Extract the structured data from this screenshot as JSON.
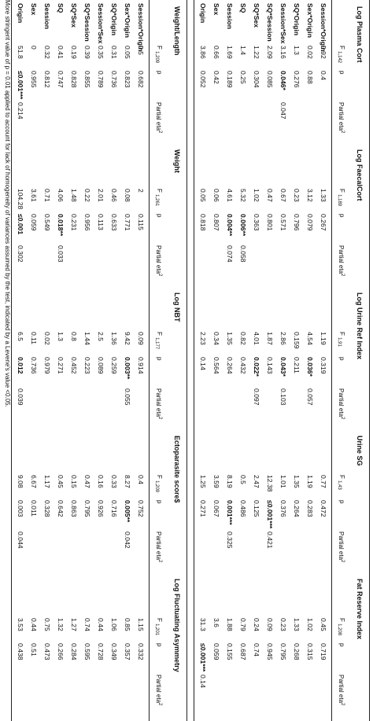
{
  "blocks": [
    {
      "groups": [
        {
          "title": "Log Plasma Cort",
          "df": "1,142"
        },
        {
          "title": "Log FaecalCort",
          "df": "1,189"
        },
        {
          "title": "Log Urine Ref Index",
          "df": "1,91"
        },
        {
          "title": "Urine SG",
          "df": "1,43"
        },
        {
          "title": "Fat Reserve Index",
          "df": "1,208"
        }
      ],
      "rows": [
        {
          "label": "Session*Origin",
          "groups": [
            {
              "f": "0.92",
              "p": "0.4",
              "eta": ""
            },
            {
              "f": "1.33",
              "p": "0.267",
              "eta": ""
            },
            {
              "f": "1.19",
              "p": "0.319",
              "eta": ""
            },
            {
              "f": "0.77",
              "p": "0.472",
              "eta": ""
            },
            {
              "f": "0.45",
              "p": "0.719",
              "eta": ""
            }
          ]
        },
        {
          "label": "Sex*Origin",
          "groups": [
            {
              "f": "0.02",
              "p": "0.88",
              "eta": ""
            },
            {
              "f": "3.12",
              "p": "0.079",
              "eta": ""
            },
            {
              "f": "4.54",
              "p": "0.036*",
              "pbold": true,
              "eta": "0.057"
            },
            {
              "f": "1.19",
              "p": "0.283",
              "eta": ""
            },
            {
              "f": "1.02",
              "p": "0.315",
              "eta": ""
            }
          ]
        },
        {
          "label": "SQ*Origin",
          "groups": [
            {
              "f": "1.3",
              "p": "0.276",
              "eta": ""
            },
            {
              "f": "0.23",
              "p": "0.796",
              "eta": ""
            },
            {
              "f": "0.159",
              "p": "0.211",
              "eta": ""
            },
            {
              "f": "1.35",
              "p": "0.264",
              "eta": ""
            },
            {
              "f": "1.33",
              "p": "0.268",
              "eta": ""
            }
          ]
        },
        {
          "label": "Session*Sex",
          "groups": [
            {
              "f": "3.16",
              "p": "0.046*",
              "pbold": true,
              "eta": "0.047"
            },
            {
              "f": "0.67",
              "p": "0.571",
              "eta": ""
            },
            {
              "f": "2.86",
              "p": "0.043*",
              "pbold": true,
              "eta": "0.103"
            },
            {
              "f": "1.01",
              "p": "0.376",
              "eta": ""
            },
            {
              "f": "0.23",
              "p": "0.795",
              "eta": ""
            }
          ]
        },
        {
          "label": "SQ*Session",
          "groups": [
            {
              "f": "2.09",
              "p": "0.085",
              "eta": ""
            },
            {
              "f": "0.47",
              "p": "0.801",
              "eta": ""
            },
            {
              "f": "1.87",
              "p": "0.143",
              "eta": ""
            },
            {
              "f": "12.38",
              "p": "≤0.001***",
              "pbold": true,
              "eta": "0.421"
            },
            {
              "f": "0.09",
              "p": "0.945",
              "eta": ""
            }
          ]
        },
        {
          "label": "SQ*Sex",
          "groups": [
            {
              "f": "1.22",
              "p": "0.304",
              "eta": ""
            },
            {
              "f": "1.02",
              "p": "0.363",
              "eta": ""
            },
            {
              "f": "4.01",
              "p": "0.022*",
              "pbold": true,
              "eta": "0.097"
            },
            {
              "f": "2.47",
              "p": "0.125",
              "eta": ""
            },
            {
              "f": "0.24",
              "p": "0.74",
              "eta": ""
            }
          ]
        },
        {
          "label": "SQ",
          "groups": [
            {
              "f": "1.4",
              "p": "0.25",
              "eta": ""
            },
            {
              "f": "5.32",
              "p": "0.006**",
              "pbold": true,
              "eta": "0.058"
            },
            {
              "f": "0.82",
              "p": "0.432",
              "eta": ""
            },
            {
              "f": "0.5",
              "p": "0.486",
              "eta": ""
            },
            {
              "f": "0.79",
              "p": "0.687",
              "eta": ""
            }
          ]
        },
        {
          "label": "Session",
          "groups": [
            {
              "f": "1.69",
              "p": "0.189",
              "eta": ""
            },
            {
              "f": "4.61",
              "p": "0.004**",
              "pbold": true,
              "eta": "0.074"
            },
            {
              "f": "1.35",
              "p": "0.264",
              "eta": ""
            },
            {
              "f": "8.19",
              "p": "0.001***",
              "pbold": true,
              "eta": "0.325"
            },
            {
              "f": "1.88",
              "p": "0.155",
              "eta": ""
            }
          ]
        },
        {
          "label": "Sex",
          "groups": [
            {
              "f": "0.66",
              "p": "0.42",
              "eta": ""
            },
            {
              "f": "0.06",
              "p": "0.807",
              "eta": ""
            },
            {
              "f": "0.34",
              "p": "0.564",
              "eta": ""
            },
            {
              "f": "3.59",
              "p": "0.067",
              "eta": ""
            },
            {
              "f": "3.6",
              "p": "0.059",
              "eta": ""
            }
          ]
        },
        {
          "label": "Origin",
          "groups": [
            {
              "f": "3.86",
              "p": "0.052",
              "eta": ""
            },
            {
              "f": "0.05",
              "p": "0.818",
              "eta": ""
            },
            {
              "f": "2.23",
              "p": "0.14",
              "eta": ""
            },
            {
              "f": "1.25",
              "p": "0.271",
              "eta": ""
            },
            {
              "f": "31.3",
              "p": "≤0.001***",
              "pbold": true,
              "eta": "0.14"
            }
          ]
        }
      ]
    },
    {
      "groups": [
        {
          "title": "Weight/Length",
          "df": "1,209"
        },
        {
          "title": "Weight",
          "df": "1,261"
        },
        {
          "title": "Log NBT",
          "df": "1,177"
        },
        {
          "title": "Ectoparasite score$",
          "df": "1,209"
        },
        {
          "title": "Log Fluctuating Asymmetry",
          "df": "1,201"
        }
      ],
      "rows": [
        {
          "label": "Session*Origin",
          "groups": [
            {
              "f": "0.5",
              "p": "0.682",
              "eta": ""
            },
            {
              "f": "2",
              "p": "0.115",
              "eta": ""
            },
            {
              "f": "0.09",
              "p": "0.914",
              "eta": ""
            },
            {
              "f": "0.4",
              "p": "0.752",
              "eta": ""
            },
            {
              "f": "1.15",
              "p": "0.332",
              "eta": ""
            }
          ]
        },
        {
          "label": "Sex*Origin",
          "groups": [
            {
              "f": "0.05",
              "p": "0.823",
              "eta": ""
            },
            {
              "f": "0.08",
              "p": "0.771",
              "eta": ""
            },
            {
              "f": "9.42",
              "p": "0.003**",
              "pbold": true,
              "eta": "0.055"
            },
            {
              "f": "8.27",
              "p": "0.005**",
              "pbold": true,
              "eta": "0.042"
            },
            {
              "f": "0.85",
              "p": "0.357",
              "eta": ""
            }
          ]
        },
        {
          "label": "SQ*Origin",
          "groups": [
            {
              "f": "0.31",
              "p": "0.736",
              "eta": ""
            },
            {
              "f": "0.46",
              "p": "0.633",
              "eta": ""
            },
            {
              "f": "1.36",
              "p": "0.259",
              "eta": ""
            },
            {
              "f": "0.33",
              "p": "0.716",
              "eta": ""
            },
            {
              "f": "1.06",
              "p": "0.349",
              "eta": ""
            }
          ]
        },
        {
          "label": "Session*Sex",
          "groups": [
            {
              "f": "0.35",
              "p": "0.789",
              "eta": ""
            },
            {
              "f": "2.01",
              "p": "0.113",
              "eta": ""
            },
            {
              "f": "2.5",
              "p": "0.089",
              "eta": ""
            },
            {
              "f": "0.16",
              "p": "0.926",
              "eta": ""
            },
            {
              "f": "0.44",
              "p": "0.728",
              "eta": ""
            }
          ]
        },
        {
          "label": "SQ*Session",
          "groups": [
            {
              "f": "0.39",
              "p": "0.855",
              "eta": ""
            },
            {
              "f": "0.22",
              "p": "0.956",
              "eta": ""
            },
            {
              "f": "1.44",
              "p": "0.223",
              "eta": ""
            },
            {
              "f": "0.47",
              "p": "0.795",
              "eta": ""
            },
            {
              "f": "0.74",
              "p": "0.595",
              "eta": ""
            }
          ]
        },
        {
          "label": "SQ*Sex",
          "groups": [
            {
              "f": "0.19",
              "p": "0.828",
              "eta": ""
            },
            {
              "f": "1.48",
              "p": "0.231",
              "eta": ""
            },
            {
              "f": "0.8",
              "p": "0.452",
              "eta": ""
            },
            {
              "f": "0.15",
              "p": "0.863",
              "eta": ""
            },
            {
              "f": "1.27",
              "p": "0.284",
              "eta": ""
            }
          ]
        },
        {
          "label": "SQ",
          "groups": [
            {
              "f": "0.41",
              "p": "0.747",
              "eta": ""
            },
            {
              "f": "4.06",
              "p": "0.018**",
              "pbold": true,
              "eta": "0.033"
            },
            {
              "f": "1.3",
              "p": "0.271",
              "eta": ""
            },
            {
              "f": "0.45",
              "p": "0.642",
              "eta": ""
            },
            {
              "f": "1.32",
              "p": "0.266",
              "eta": ""
            }
          ]
        },
        {
          "label": "Session",
          "groups": [
            {
              "f": "0.32",
              "p": "0.812",
              "eta": ""
            },
            {
              "f": "0.71",
              "p": "0.549",
              "eta": ""
            },
            {
              "f": "0.02",
              "p": "0.979",
              "eta": ""
            },
            {
              "f": "1.17",
              "p": "0.328",
              "eta": ""
            },
            {
              "f": "0.75",
              "p": "0.473",
              "eta": ""
            }
          ]
        },
        {
          "label": "Sex",
          "groups": [
            {
              "f": "0",
              "p": "0.955",
              "eta": ""
            },
            {
              "f": "3.61",
              "p": "0.059",
              "eta": ""
            },
            {
              "f": "0.11",
              "p": "0.736",
              "eta": ""
            },
            {
              "f": "6.67",
              "p": "0.011",
              "eta": ""
            },
            {
              "f": "0.44",
              "p": "0.51",
              "eta": ""
            }
          ]
        },
        {
          "label": "Origin",
          "groups": [
            {
              "f": "51.8",
              "p": "≤0.001***",
              "pbold": true,
              "eta": "0.214"
            },
            {
              "f": "104.28",
              "p": "≤0.001",
              "pbold": true,
              "eta": "0.302"
            },
            {
              "f": "6.5",
              "p": "0.012",
              "pbold": true,
              "eta": "0.039"
            },
            {
              "f": "9.08",
              "p": "0.003",
              "eta": "0.044"
            },
            {
              "f": "3.53",
              "p": "0.438",
              "eta": ""
            }
          ]
        }
      ]
    }
  ],
  "headers": {
    "f": "F",
    "p": "p",
    "eta": "Partial eta",
    "eta_sup": "2"
  },
  "footnote": "More stringent value of p = 0.01 applied to account for lack of homogeneity of variances assumed by the test, indicated by a Levene's value <0.05."
}
